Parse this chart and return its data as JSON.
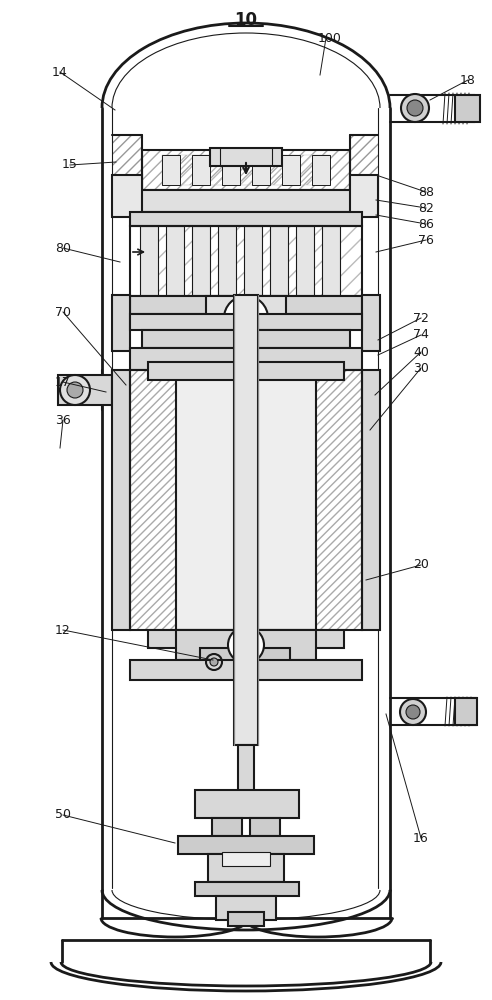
{
  "title": "10",
  "background_color": "#ffffff",
  "line_color": "#1a1a1a",
  "label_items": [
    [
      "100",
      318,
      38,
      320,
      75
    ],
    [
      "14",
      52,
      72,
      115,
      110
    ],
    [
      "18",
      460,
      80,
      430,
      100
    ],
    [
      "15",
      62,
      165,
      116,
      162
    ],
    [
      "88",
      418,
      192,
      376,
      175
    ],
    [
      "82",
      418,
      208,
      376,
      200
    ],
    [
      "86",
      418,
      224,
      376,
      215
    ],
    [
      "76",
      418,
      240,
      376,
      252
    ],
    [
      "80",
      55,
      248,
      120,
      262
    ],
    [
      "70",
      55,
      312,
      126,
      385
    ],
    [
      "72",
      413,
      318,
      378,
      340
    ],
    [
      "74",
      413,
      335,
      378,
      355
    ],
    [
      "40",
      413,
      352,
      375,
      395
    ],
    [
      "30",
      413,
      368,
      370,
      430
    ],
    [
      "17",
      55,
      382,
      106,
      392
    ],
    [
      "36",
      55,
      420,
      60,
      448
    ],
    [
      "20",
      413,
      565,
      366,
      580
    ],
    [
      "12",
      55,
      630,
      213,
      660
    ],
    [
      "50",
      55,
      815,
      175,
      843
    ],
    [
      "16",
      413,
      838,
      386,
      714
    ]
  ],
  "fig_width": 4.92,
  "fig_height": 10.0,
  "dpi": 100
}
